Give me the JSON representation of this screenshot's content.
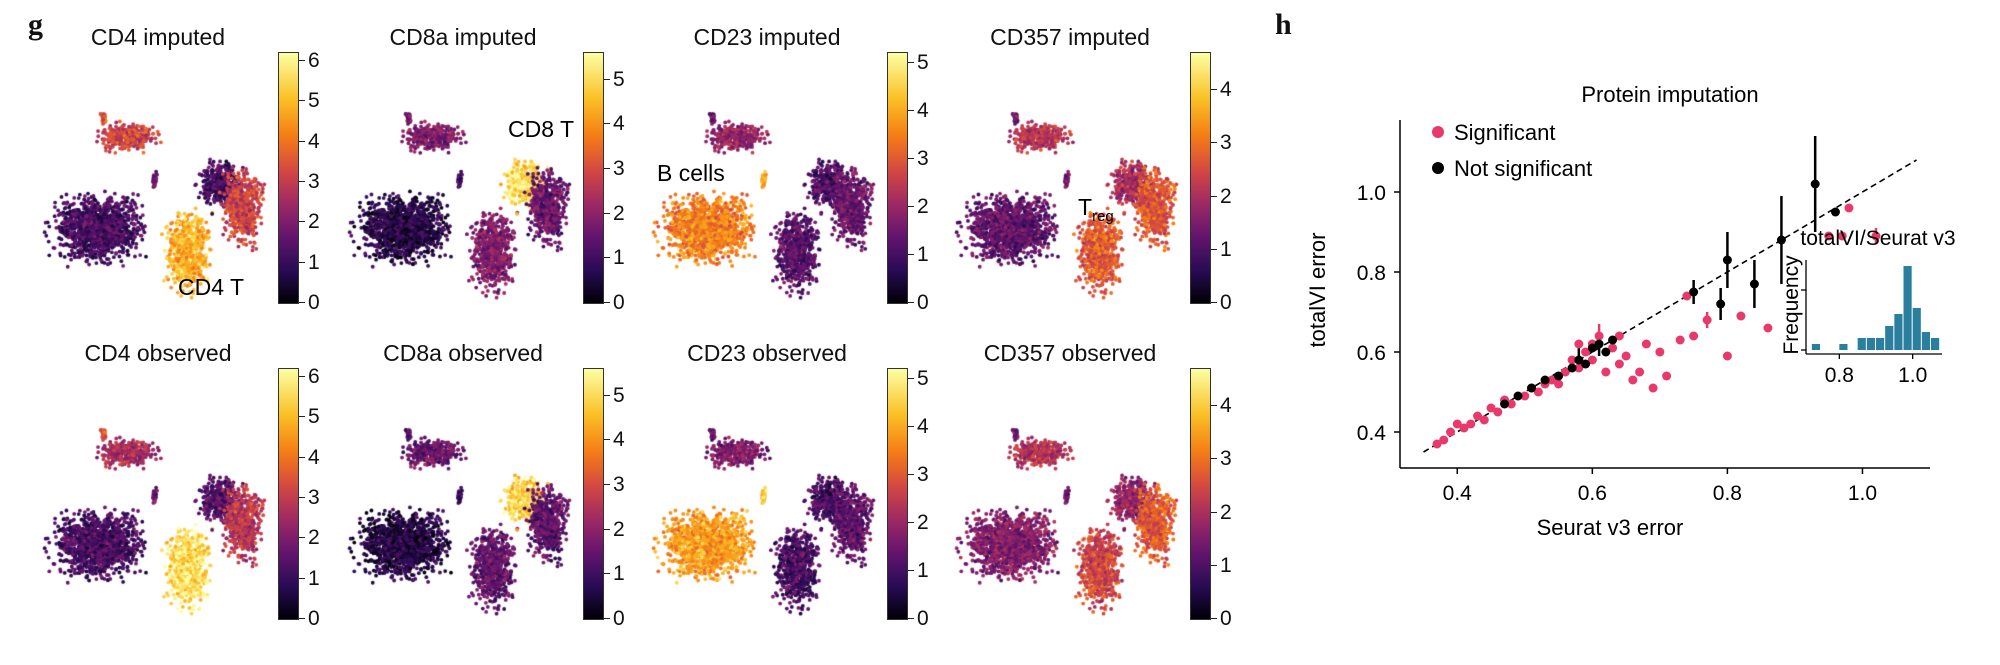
{
  "panel_letters": {
    "g": "g",
    "h": "h"
  },
  "umap_panels": [
    {
      "title": "CD4 imputed",
      "ticks": [
        "0",
        "1",
        "2",
        "3",
        "4",
        "5",
        "6"
      ],
      "max": 6.2,
      "profile": "cd4_imp",
      "annotation": "CD4 T"
    },
    {
      "title": "CD8a imputed",
      "ticks": [
        "0",
        "1",
        "2",
        "3",
        "4",
        "5"
      ],
      "max": 5.6,
      "profile": "cd8_imp",
      "annotation": "CD8 T"
    },
    {
      "title": "CD23 imputed",
      "ticks": [
        "0",
        "1",
        "2",
        "3",
        "4",
        "5"
      ],
      "max": 5.2,
      "profile": "cd23_imp",
      "annotation": "B cells"
    },
    {
      "title": "CD357 imputed",
      "ticks": [
        "0",
        "1",
        "2",
        "3",
        "4"
      ],
      "max": 4.7,
      "profile": "cd357_imp",
      "annotation": "T",
      "annotation_sub": "reg"
    },
    {
      "title": "CD4 observed",
      "ticks": [
        "0",
        "1",
        "2",
        "3",
        "4",
        "5",
        "6"
      ],
      "max": 6.2,
      "profile": "cd4_obs"
    },
    {
      "title": "CD8a observed",
      "ticks": [
        "0",
        "1",
        "2",
        "3",
        "4",
        "5"
      ],
      "max": 5.6,
      "profile": "cd8_obs"
    },
    {
      "title": "CD23 observed",
      "ticks": [
        "0",
        "1",
        "2",
        "3",
        "4",
        "5"
      ],
      "max": 5.2,
      "profile": "cd23_obs"
    },
    {
      "title": "CD357 observed",
      "ticks": [
        "0",
        "1",
        "2",
        "3",
        "4"
      ],
      "max": 4.7,
      "profile": "cd357_obs"
    }
  ],
  "colors": {
    "significant": "#e8386c",
    "not_significant": "#000000",
    "histogram": "#2a7f9e"
  },
  "chart_data": [
    {
      "type": "scatter",
      "title": "Protein imputation",
      "xlabel": "Seurat v3 error",
      "ylabel": "totalVI error",
      "xlim": [
        0.33,
        1.1
      ],
      "ylim": [
        0.33,
        1.18
      ],
      "xticks": [
        "0.4",
        "0.6",
        "0.8",
        "1.0"
      ],
      "yticks": [
        "0.4",
        "0.6",
        "0.8",
        "1.0"
      ],
      "diagonal": "dashed y = x",
      "legend": [
        "Significant",
        "Not significant"
      ],
      "series": [
        {
          "name": "Significant",
          "points": [
            [
              0.37,
              0.37
            ],
            [
              0.38,
              0.38
            ],
            [
              0.39,
              0.4
            ],
            [
              0.4,
              0.42
            ],
            [
              0.41,
              0.41
            ],
            [
              0.42,
              0.42
            ],
            [
              0.43,
              0.44
            ],
            [
              0.44,
              0.43
            ],
            [
              0.45,
              0.46
            ],
            [
              0.46,
              0.45
            ],
            [
              0.47,
              0.48
            ],
            [
              0.48,
              0.47
            ],
            [
              0.5,
              0.49
            ],
            [
              0.51,
              0.51
            ],
            [
              0.52,
              0.5
            ],
            [
              0.53,
              0.52
            ],
            [
              0.54,
              0.53
            ],
            [
              0.55,
              0.52
            ],
            [
              0.56,
              0.55
            ],
            [
              0.57,
              0.58
            ],
            [
              0.58,
              0.56
            ],
            [
              0.59,
              0.6
            ],
            [
              0.6,
              0.62
            ],
            [
              0.61,
              0.64
            ],
            [
              0.62,
              0.55
            ],
            [
              0.63,
              0.61
            ],
            [
              0.64,
              0.57
            ],
            [
              0.65,
              0.59
            ],
            [
              0.66,
              0.53
            ],
            [
              0.67,
              0.55
            ],
            [
              0.68,
              0.62
            ],
            [
              0.69,
              0.51
            ],
            [
              0.7,
              0.6
            ],
            [
              0.71,
              0.54
            ],
            [
              0.73,
              0.63
            ],
            [
              0.75,
              0.64
            ],
            [
              0.77,
              0.68
            ],
            [
              0.8,
              0.59
            ],
            [
              0.82,
              0.69
            ],
            [
              0.86,
              0.66
            ],
            [
              0.95,
              0.89
            ],
            [
              0.97,
              0.89
            ],
            [
              0.98,
              0.96
            ],
            [
              1.02,
              0.89
            ],
            [
              0.6,
              0.58
            ],
            [
              0.58,
              0.62
            ],
            [
              0.64,
              0.64
            ],
            [
              0.74,
              0.74
            ]
          ]
        },
        {
          "name": "Not significant",
          "points": [
            [
              0.47,
              0.47
            ],
            [
              0.49,
              0.49
            ],
            [
              0.51,
              0.51
            ],
            [
              0.53,
              0.53
            ],
            [
              0.55,
              0.54
            ],
            [
              0.57,
              0.56
            ],
            [
              0.58,
              0.58
            ],
            [
              0.59,
              0.57
            ],
            [
              0.6,
              0.61
            ],
            [
              0.61,
              0.62
            ],
            [
              0.62,
              0.6
            ],
            [
              0.63,
              0.63
            ],
            [
              0.75,
              0.75
            ],
            [
              0.79,
              0.72
            ],
            [
              0.8,
              0.83
            ],
            [
              0.84,
              0.77
            ],
            [
              0.88,
              0.88
            ],
            [
              0.93,
              1.02
            ],
            [
              0.96,
              0.95
            ]
          ]
        }
      ]
    },
    {
      "type": "bar",
      "title": "totalVI/Seurat v3",
      "xlabel": "",
      "ylabel": "Frequency",
      "xticks": [
        "0.8",
        "1.0"
      ],
      "xlim": [
        0.72,
        1.08
      ],
      "bin_width": 0.025,
      "bin_starts": [
        0.725,
        0.75,
        0.775,
        0.8,
        0.825,
        0.85,
        0.875,
        0.9,
        0.925,
        0.95,
        0.975,
        1.0,
        1.025,
        1.05
      ],
      "values": [
        1,
        0,
        0,
        1,
        0,
        2,
        2,
        2,
        4,
        6,
        14,
        7,
        3,
        2
      ]
    }
  ]
}
